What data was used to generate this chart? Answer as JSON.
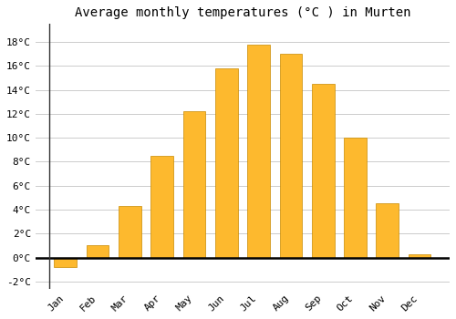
{
  "title": "Average monthly temperatures (°C ) in Murten",
  "months": [
    "Jan",
    "Feb",
    "Mar",
    "Apr",
    "May",
    "Jun",
    "Jul",
    "Aug",
    "Sep",
    "Oct",
    "Nov",
    "Dec"
  ],
  "values": [
    -0.8,
    1.0,
    4.3,
    8.5,
    12.2,
    15.8,
    17.8,
    17.0,
    14.5,
    10.0,
    4.5,
    0.3
  ],
  "bar_color": "#FDB92E",
  "bar_edge_color": "#C88A00",
  "ylim": [
    -2.6,
    19.5
  ],
  "yticks": [
    -2,
    0,
    2,
    4,
    6,
    8,
    10,
    12,
    14,
    16,
    18
  ],
  "background_color": "#FFFFFF",
  "plot_bg_color": "#FFFFFF",
  "grid_color": "#CCCCCC",
  "title_fontsize": 10,
  "tick_fontsize": 8,
  "bar_width": 0.7
}
